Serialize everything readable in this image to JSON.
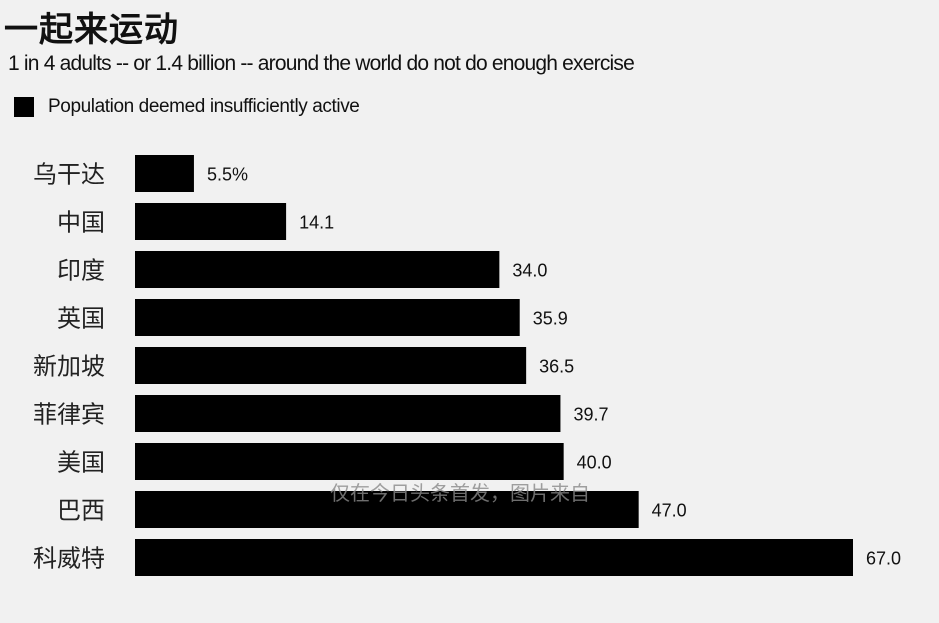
{
  "chart_data": {
    "type": "bar",
    "orientation": "horizontal",
    "title": "一起来运动",
    "subtitle": "1 in 4 adults -- or 1.4 billion -- around the world do not do enough exercise",
    "legend": "Population deemed insufficiently active",
    "categories": [
      "乌干达",
      "中国",
      "印度",
      "英国",
      "新加坡",
      "菲律宾",
      "美国",
      "巴西",
      "科威特"
    ],
    "values": [
      5.5,
      14.1,
      34.0,
      35.9,
      36.5,
      39.7,
      40.0,
      47.0,
      67.0
    ],
    "value_labels": [
      "5.5%",
      "14.1",
      "34.0",
      "35.9",
      "36.5",
      "39.7",
      "40.0",
      "47.0",
      "67.0"
    ],
    "xlim": [
      0,
      67
    ],
    "grid": false,
    "bar_color": "#000000"
  },
  "watermark": "仅在今日头条首发，图片来自"
}
